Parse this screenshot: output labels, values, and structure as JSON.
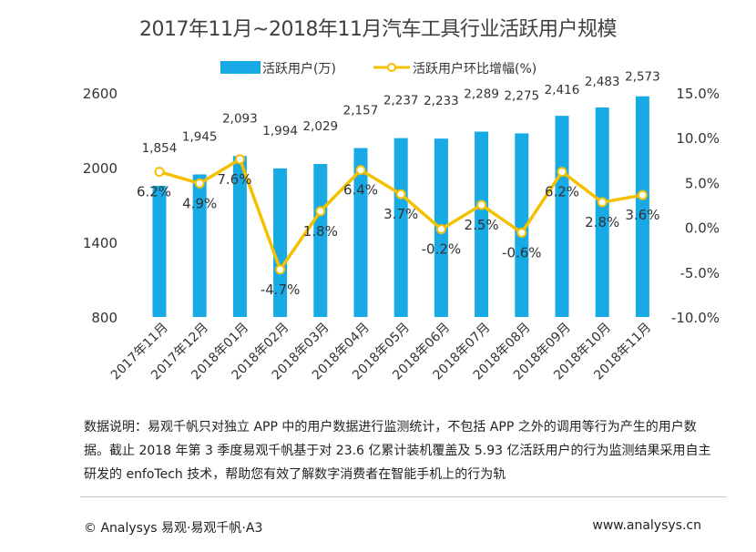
{
  "colors": {
    "bar": "#18aae5",
    "line": "#f4c000",
    "marker_fill": "#ffffff",
    "text": "#333333"
  },
  "chart_data": {
    "type": "bar",
    "title": "2017年11月~2018年11月汽车工具行业活跃用户规模",
    "categories": [
      "2017年11月",
      "2017年12月",
      "2018年01月",
      "2018年02月",
      "2018年03月",
      "2018年04月",
      "2018年05月",
      "2018年06月",
      "2018年07月",
      "2018年08月",
      "2018年09月",
      "2018年10月",
      "2018年11月"
    ],
    "series": [
      {
        "name": "活跃用户(万)",
        "type": "bar",
        "axis": "left",
        "values": [
          1854,
          1945,
          2093,
          1994,
          2029,
          2157,
          2237,
          2233,
          2289,
          2275,
          2416,
          2483,
          2573
        ],
        "labels": [
          "1,854",
          "1,945",
          "2,093",
          "1,994",
          "2,029",
          "2,157",
          "2,237",
          "2,233",
          "2,289",
          "2,275",
          "2,416",
          "2,483",
          "2,573"
        ]
      },
      {
        "name": "活跃用户环比增幅(%)",
        "type": "line",
        "axis": "right",
        "values": [
          6.2,
          4.9,
          7.6,
          -4.7,
          1.8,
          6.4,
          3.7,
          -0.2,
          2.5,
          -0.6,
          6.2,
          2.8,
          3.6
        ],
        "labels": [
          "6.2%",
          "4.9%",
          "7.6%",
          "-4.7%",
          "1.8%",
          "6.4%",
          "3.7%",
          "-0.2%",
          "2.5%",
          "-0.6%",
          "6.2%",
          "2.8%",
          "3.6%"
        ]
      }
    ],
    "y_left": {
      "min": 800,
      "max": 2600,
      "ticks": [
        "2600",
        "2000",
        "1400",
        "800"
      ],
      "tick_values": [
        2600,
        2000,
        1400,
        800
      ]
    },
    "y_right": {
      "min": -10,
      "max": 15,
      "ticks": [
        "15.0%",
        "10.0%",
        "5.0%",
        "0.0%",
        "-5.0%",
        "-10.0%"
      ],
      "tick_values": [
        15,
        10,
        5,
        0,
        -5,
        -10
      ]
    },
    "legend_position": "top-center",
    "grid": false
  },
  "note": "数据说明：易观千帆只对独立 APP 中的用户数据进行监测统计，不包括 APP 之外的调用等行为产生的用户数据。截止 2018 年第 3 季度易观千帆基于对 23.6 亿累计装机覆盖及 5.93 亿活跃用户的行为监测结果采用自主研发的 enfoTech 技术，帮助您有效了解数字消费者在智能手机上的行为轨",
  "footer": {
    "left": "© Analysys  易观·易观千帆·A3",
    "right": "www.analysys.cn"
  }
}
